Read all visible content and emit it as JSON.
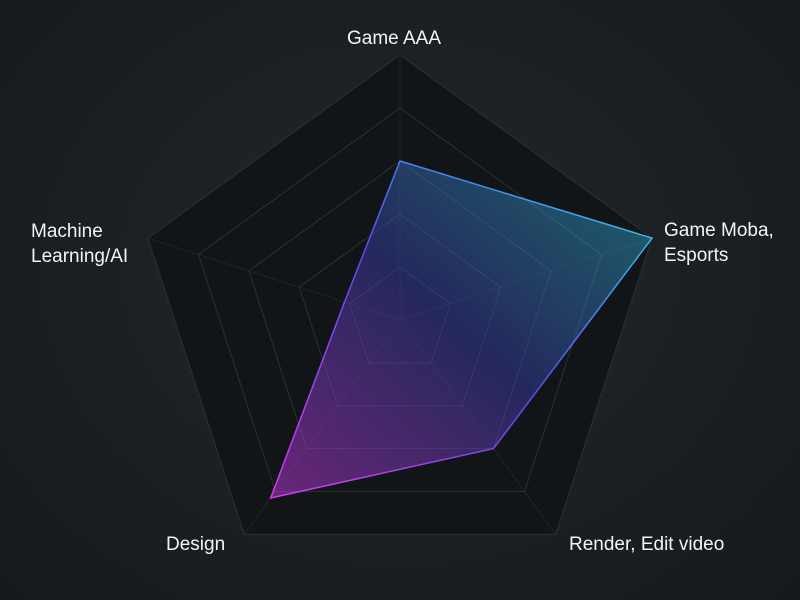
{
  "chart_data": {
    "type": "radar",
    "categories": [
      "Game AAA",
      "Game Moba, Esports",
      "Render, Edit video",
      "Design",
      "Machine Learning/AI"
    ],
    "label_lines": [
      [
        "Game AAA"
      ],
      [
        "Game Moba,",
        "Esports"
      ],
      [
        "Render, Edit video"
      ],
      [
        "Design"
      ],
      [
        "Machine",
        "Learning/AI"
      ]
    ],
    "values": [
      60,
      100,
      60,
      83,
      22
    ],
    "rlim": [
      0,
      100
    ],
    "grid_levels": 5,
    "grid": true,
    "colors": {
      "gradient_start": "#d63af0",
      "gradient_mid": "#5a4cf0",
      "gradient_end": "#2fd6e6",
      "grid": "#2b3035",
      "pentagon_fill": "#121518",
      "label": "#f2f4f6"
    }
  }
}
